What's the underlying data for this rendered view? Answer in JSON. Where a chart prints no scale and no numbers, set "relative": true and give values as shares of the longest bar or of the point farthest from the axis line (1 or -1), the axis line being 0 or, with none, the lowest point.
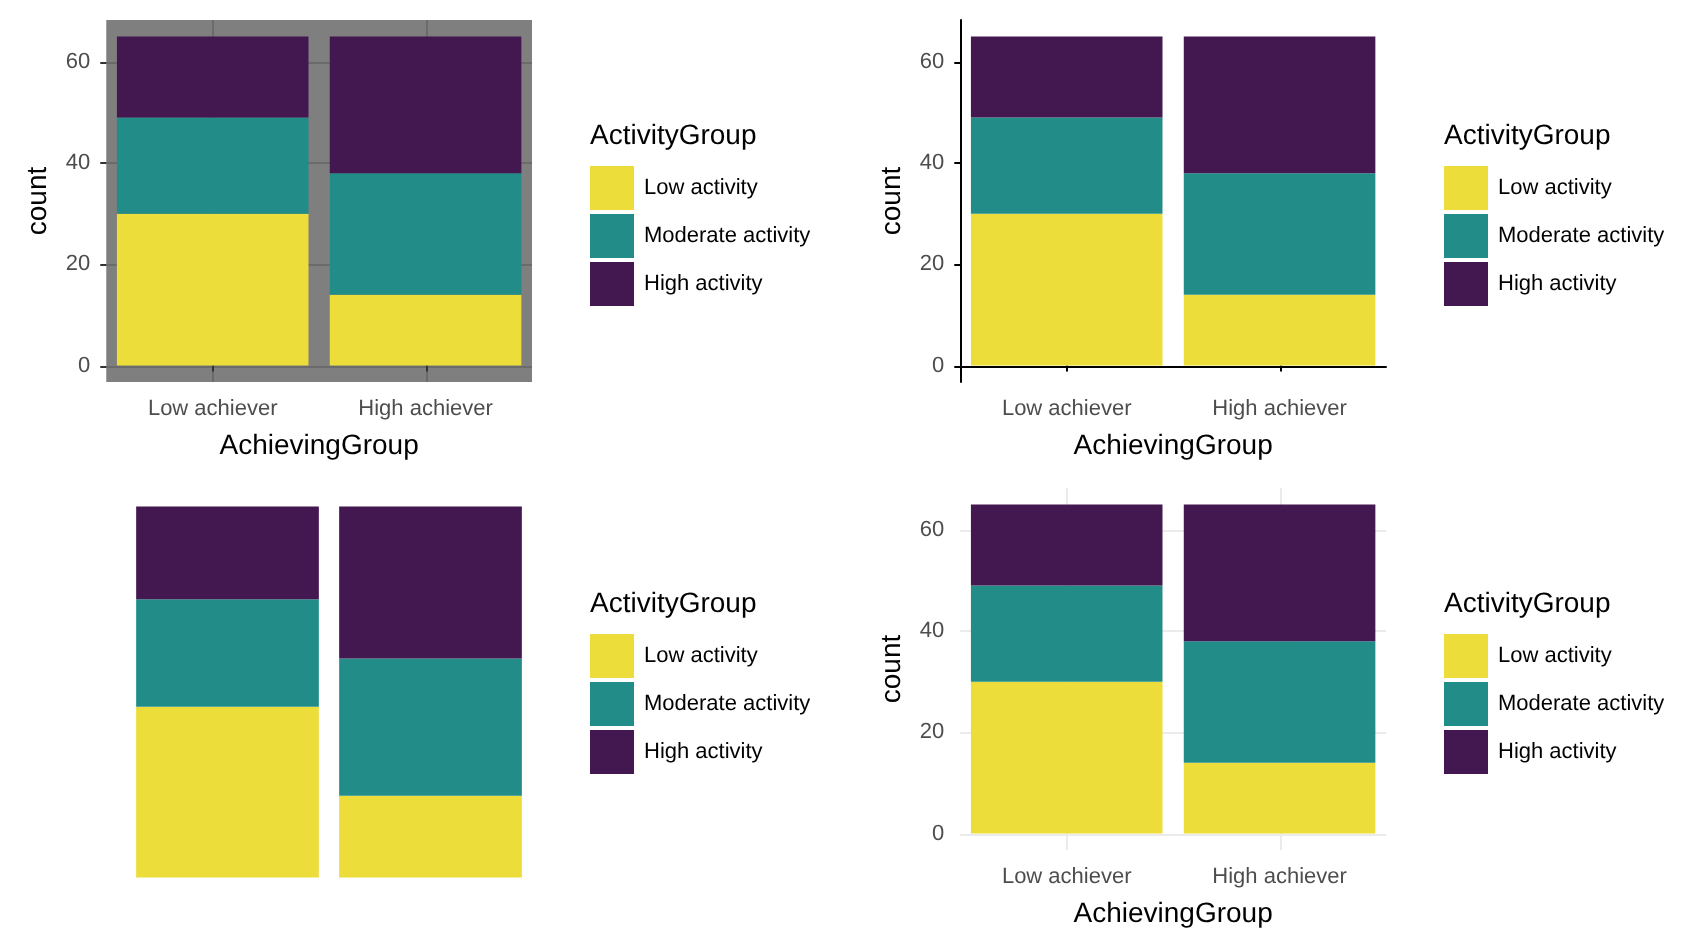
{
  "chart_data": [
    {
      "type": "bar",
      "stacked": true,
      "xlabel": "AchievingGroup",
      "ylabel": "count",
      "legend_title": "ActivityGroup",
      "categories": [
        "Low achiever",
        "High achiever"
      ],
      "series": [
        {
          "name": "Low activity",
          "color": "#ecdd3a",
          "values": [
            30,
            14
          ]
        },
        {
          "name": "Moderate activity",
          "color": "#228d88",
          "values": [
            19,
            24
          ]
        },
        {
          "name": "High activity",
          "color": "#43174f",
          "values": [
            16,
            27
          ]
        }
      ],
      "ylim": [
        -3.25,
        68.25
      ],
      "yticks": [
        0,
        20,
        40,
        60
      ],
      "grid": true,
      "legend": "right"
    },
    {
      "type": "bar",
      "stacked": true,
      "xlabel": "AchievingGroup",
      "ylabel": "count",
      "legend_title": "ActivityGroup",
      "categories": [
        "Low achiever",
        "High achiever"
      ],
      "series": [
        {
          "name": "Low activity",
          "color": "#ecdd3a",
          "values": [
            30,
            14
          ]
        },
        {
          "name": "Moderate activity",
          "color": "#228d88",
          "values": [
            19,
            24
          ]
        },
        {
          "name": "High activity",
          "color": "#43174f",
          "values": [
            16,
            27
          ]
        }
      ],
      "ylim": [
        -3.25,
        68.25
      ],
      "yticks": [
        0,
        20,
        40,
        60
      ],
      "legend": "right"
    },
    {
      "type": "bar",
      "stacked": true,
      "relative": true,
      "legend_title": "ActivityGroup",
      "categories": [
        null,
        null
      ],
      "series": [
        {
          "name": "Low activity",
          "color": "#ecdd3a",
          "values": [
            0.46,
            0.22
          ]
        },
        {
          "name": "Moderate activity",
          "color": "#228d88",
          "values": [
            0.29,
            0.37
          ]
        },
        {
          "name": "High activity",
          "color": "#43174f",
          "values": [
            0.25,
            0.41
          ]
        }
      ],
      "legend": "right"
    },
    {
      "type": "bar",
      "stacked": true,
      "xlabel": "AchievingGroup",
      "ylabel": "count",
      "legend_title": "ActivityGroup",
      "categories": [
        "Low achiever",
        "High achiever"
      ],
      "series": [
        {
          "name": "Low activity",
          "color": "#ecdd3a",
          "values": [
            30,
            14
          ]
        },
        {
          "name": "Moderate activity",
          "color": "#228d88",
          "values": [
            19,
            24
          ]
        },
        {
          "name": "High activity",
          "color": "#43174f",
          "values": [
            16,
            27
          ]
        }
      ],
      "ylim": [
        -3.25,
        68.25
      ],
      "yticks": [
        0,
        20,
        40,
        60
      ],
      "grid": true,
      "legend": "right"
    }
  ]
}
